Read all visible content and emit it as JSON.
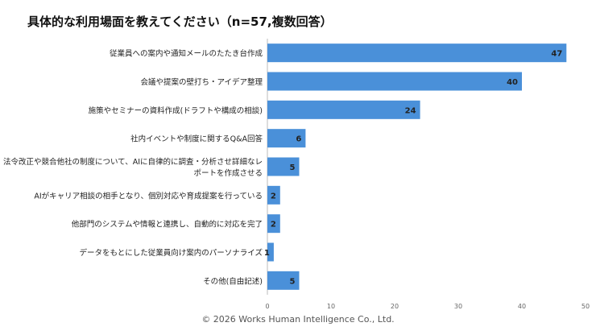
{
  "chart_data": {
    "type": "bar",
    "orientation": "horizontal",
    "title": "具体的な利用場面を教えてください（n=57,複数回答）",
    "categories": [
      "従業員への案内や通知メールのたたき台作成",
      "会議や提案の壁打ち・アイデア整理",
      "施策やセミナーの資料作成(ドラフトや構成の相談)",
      "社内イベントや制度に関するQ&A回答",
      "法令改正や競合他社の制度について、AIに自律的に調査・分析させ詳細なレポートを作成させる",
      "AIがキャリア相談の相手となり、個別対応や育成提案を行っている",
      "他部門のシステムや情報と連携し、自動的に対応を完了",
      "データをもとにした従業員向け案内のパーソナライズ",
      "その他(自由記述)"
    ],
    "category_lines": [
      [
        "従業員への案内や通知メールのたたき台作成"
      ],
      [
        "会議や提案の壁打ち・アイデア整理"
      ],
      [
        "施策やセミナーの資料作成(ドラフトや構成の相談)"
      ],
      [
        "社内イベントや制度に関するQ&A回答"
      ],
      [
        "法令改正や競合他社の制度について、AIに自律的に調査・分析させ詳細なレ",
        "ポートを作成させる"
      ],
      [
        "AIがキャリア相談の相手となり、個別対応や育成提案を行っている"
      ],
      [
        "他部門のシステムや情報と連携し、自動的に対応を完了"
      ],
      [
        "データをもとにした従業員向け案内のパーソナライズ"
      ],
      [
        "その他(自由記述)"
      ]
    ],
    "values": [
      47,
      40,
      24,
      6,
      5,
      2,
      2,
      1,
      5
    ],
    "xlim": [
      0,
      50
    ],
    "xticks": [
      "0",
      "10",
      "20",
      "30",
      "40",
      "50"
    ],
    "grid": false,
    "bar_color": "#4a90d9"
  },
  "footer": "© 2026 Works Human Intelligence Co., Ltd."
}
